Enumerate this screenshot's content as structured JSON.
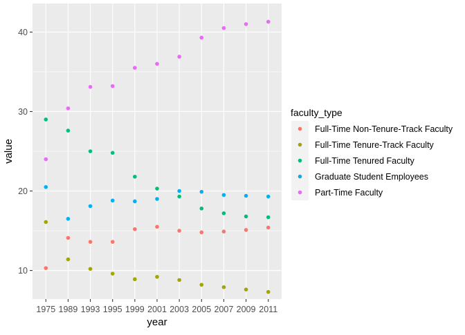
{
  "chart_data": {
    "type": "scatter",
    "title": "",
    "xlabel": "year",
    "ylabel": "value",
    "x_categories": [
      "1975",
      "1989",
      "1993",
      "1995",
      "1999",
      "2001",
      "2003",
      "2005",
      "2007",
      "2009",
      "2011"
    ],
    "y_ticks": [
      10,
      20,
      30,
      40
    ],
    "ylim": [
      6.4,
      43.6
    ],
    "grid": true,
    "legend_position": "right",
    "legend_title": "faculty_type",
    "series": [
      {
        "name": "Full-Time Non-Tenure-Track Faculty",
        "color": "#F8766D",
        "values": [
          10.3,
          14.1,
          13.6,
          13.6,
          15.2,
          15.5,
          15.0,
          14.8,
          14.9,
          15.1,
          15.4
        ]
      },
      {
        "name": "Full-Time Tenure-Track Faculty",
        "color": "#A3A500",
        "values": [
          16.1,
          11.4,
          10.2,
          9.6,
          8.9,
          9.2,
          8.8,
          8.2,
          7.9,
          7.6,
          7.3
        ]
      },
      {
        "name": "Full-Time Tenured Faculty",
        "color": "#00BF7D",
        "values": [
          29.0,
          27.6,
          25.0,
          24.8,
          21.8,
          20.3,
          19.3,
          17.8,
          17.2,
          16.8,
          16.7
        ]
      },
      {
        "name": "Graduate Student Employees",
        "color": "#00B0F6",
        "values": [
          20.5,
          16.5,
          18.1,
          18.8,
          18.7,
          19.0,
          20.0,
          19.9,
          19.5,
          19.4,
          19.3
        ]
      },
      {
        "name": "Part-Time Faculty",
        "color": "#E76BF3",
        "values": [
          24.0,
          30.4,
          33.1,
          33.2,
          35.5,
          36.0,
          36.9,
          39.3,
          40.5,
          41.0,
          41.3
        ]
      }
    ]
  }
}
